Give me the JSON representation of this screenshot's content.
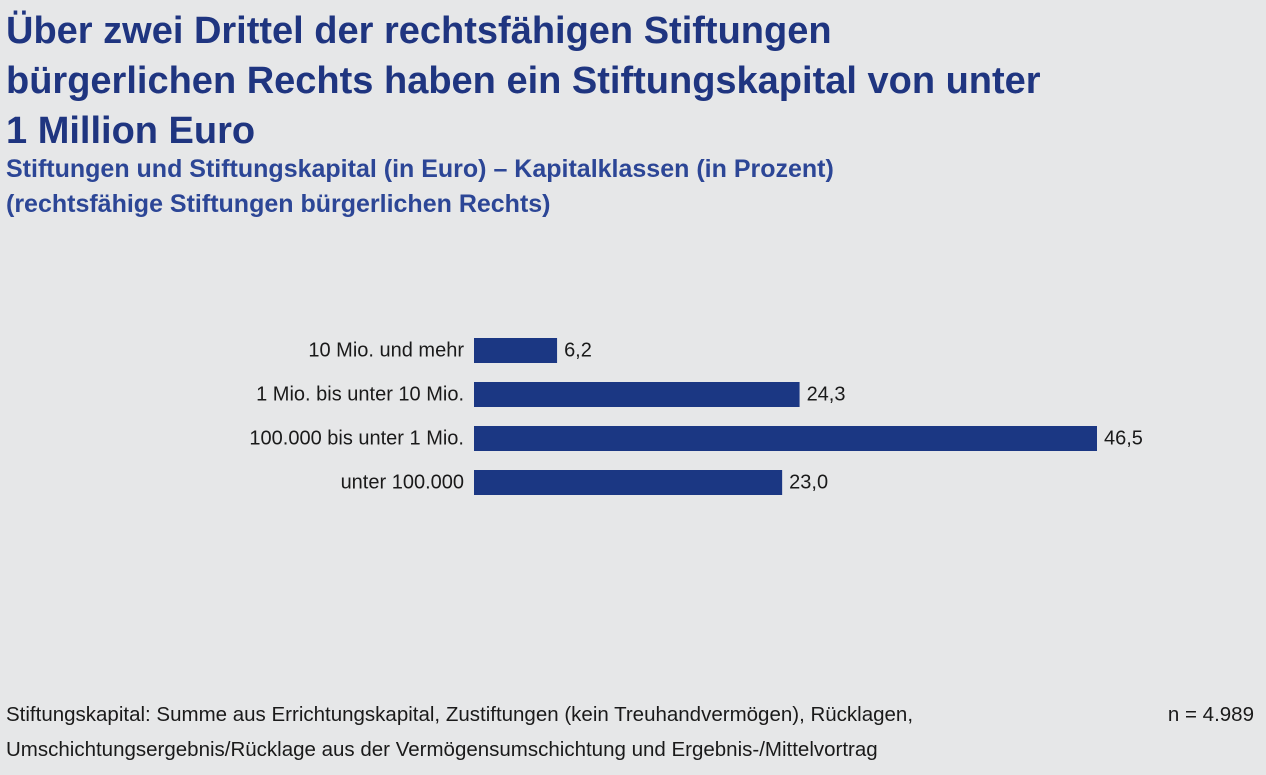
{
  "title": "Über zwei Drittel der rechtsfähigen Stiftungen bürgerlichen Rechts haben ein Stiftungskapital von unter 1 Million Euro",
  "subtitle": {
    "line1": "Stiftungen und Stiftungskapital (in Euro) – Kapitalklassen (in Prozent)",
    "line2": "(rechtsfähige Stiftungen bürgerlichen Rechts)"
  },
  "chart_data": {
    "type": "bar",
    "orientation": "horizontal",
    "categories": [
      "10 Mio. und mehr",
      "1 Mio. bis unter 10 Mio.",
      "100.000 bis unter 1 Mio.",
      "unter 100.000"
    ],
    "values": [
      6.2,
      24.3,
      46.5,
      23.0
    ],
    "value_labels": [
      "6,2",
      "24,3",
      "46,5",
      "23,0"
    ],
    "xlim": [
      0,
      46.5
    ],
    "grid": false,
    "bar_color": "#1b3783"
  },
  "footnote": {
    "line1": "Stiftungskapital: Summe aus Errichtungskapital, Zustiftungen (kein Treuhandvermögen), Rücklagen,",
    "line2": "Umschichtungsergebnis/Rücklage aus der Vermögensumschichtung und Ergebnis-/Mittelvortrag"
  },
  "sample_size": "n = 4.989",
  "colors": {
    "background": "#e6e7e8",
    "title": "#1f3580",
    "subtitle": "#2c4696",
    "bars": "#1b3783",
    "text": "#1a1a1a"
  }
}
